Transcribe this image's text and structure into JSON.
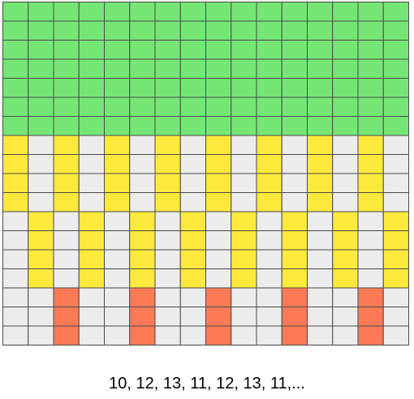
{
  "colors": {
    "green": "#75e675",
    "yellow": "#fce93b",
    "red": "#fc7a55",
    "empty": "#ececec",
    "border": "#4a4a4a"
  },
  "grid": {
    "columns": 16,
    "rows": [
      "GGGGGGGGGGGGGGGG",
      "GGGGGGGGGGGGGGGG",
      "GGGGGGGGGGGGGGGG",
      "GGGGGGGGGGGGGGGG",
      "GGGGGGGGGGGGGGGG",
      "GGGGGGGGGGGGGGGG",
      "GGGGGGGGGGGGGGGG",
      "Y.Y.Y.Y.Y.Y.Y.Y.",
      "Y.Y.Y.Y.Y.Y.Y.Y.",
      "Y.Y.Y.Y.Y.Y.Y.Y.",
      "Y.Y.Y.Y.Y.Y.Y.Y.",
      ".Y.Y.Y.Y.Y.Y.Y.Y",
      ".Y.Y.Y.Y.Y.Y.Y.Y",
      ".Y.Y.Y.Y.Y.Y.Y.Y",
      ".Y.Y.Y.Y.Y.Y.Y.Y",
      "..R..R..R..R..R.",
      "..R..R..R..R..R.",
      "..R..R..R..R..R."
    ]
  },
  "caption": "10, 12, 13, 11, 12, 13, 11,..."
}
